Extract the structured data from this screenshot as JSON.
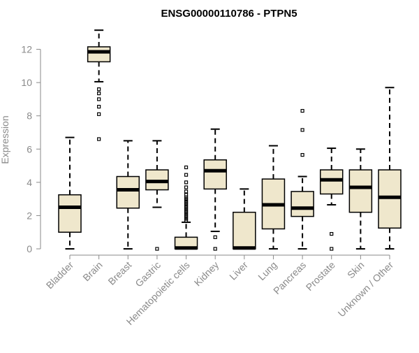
{
  "chart_data": {
    "type": "boxplot",
    "title": "ENSG00000110786 - PTPN5",
    "xlabel": "",
    "ylabel": "Expression",
    "ylim": [
      0,
      13.2
    ],
    "yticks": [
      0,
      2,
      4,
      6,
      8,
      10,
      12
    ],
    "grid": false,
    "colors": {
      "box_fill": "#efe7cc",
      "stroke": "#000000",
      "tick_text": "#8a8a8a",
      "axis": "#8a8a8a"
    },
    "categories": [
      "Bladder",
      "Brain",
      "Breast",
      "Gastric",
      "Hematopoietic cells",
      "Kidney",
      "Liver",
      "Lung",
      "Pancreas",
      "Prostate",
      "Skin",
      "Unknown / Other"
    ],
    "boxes": [
      {
        "category": "Bladder",
        "whisker_low": 0.0,
        "q1": 1.0,
        "median": 2.5,
        "q3": 3.25,
        "whisker_high": 6.7,
        "outliers": []
      },
      {
        "category": "Brain",
        "whisker_low": 10.05,
        "q1": 11.25,
        "median": 11.85,
        "q3": 12.15,
        "whisker_high": 13.15,
        "outliers": [
          9.6,
          9.35,
          9.0,
          8.55,
          8.1,
          6.6
        ]
      },
      {
        "category": "Breast",
        "whisker_low": 0.0,
        "q1": 2.45,
        "median": 3.55,
        "q3": 4.35,
        "whisker_high": 6.5,
        "outliers": []
      },
      {
        "category": "Gastric",
        "whisker_low": 2.5,
        "q1": 3.55,
        "median": 4.05,
        "q3": 4.75,
        "whisker_high": 6.5,
        "outliers": [
          0.0
        ]
      },
      {
        "category": "Hematopoietic cells",
        "whisker_low": 0.0,
        "q1": 0.0,
        "median": 0.05,
        "q3": 0.7,
        "whisker_high": 1.6,
        "outliers": [
          1.7,
          1.8,
          1.9,
          2.0,
          2.1,
          2.2,
          2.3,
          2.4,
          2.5,
          2.6,
          2.7,
          2.8,
          2.9,
          3.0,
          3.1,
          3.25,
          3.45,
          3.7,
          4.0,
          4.45,
          4.9
        ]
      },
      {
        "category": "Kidney",
        "whisker_low": 1.05,
        "q1": 3.6,
        "median": 4.7,
        "q3": 5.35,
        "whisker_high": 7.2,
        "outliers": [
          0.7,
          0.0
        ]
      },
      {
        "category": "Liver",
        "whisker_low": 0.0,
        "q1": 0.0,
        "median": 0.05,
        "q3": 2.2,
        "whisker_high": 3.6,
        "outliers": []
      },
      {
        "category": "Lung",
        "whisker_low": 0.0,
        "q1": 1.2,
        "median": 2.65,
        "q3": 4.2,
        "whisker_high": 6.2,
        "outliers": []
      },
      {
        "category": "Pancreas",
        "whisker_low": 0.0,
        "q1": 1.95,
        "median": 2.45,
        "q3": 3.45,
        "whisker_high": 4.35,
        "outliers": [
          5.65,
          7.15,
          8.3
        ]
      },
      {
        "category": "Prostate",
        "whisker_low": 2.65,
        "q1": 3.3,
        "median": 4.15,
        "q3": 4.75,
        "whisker_high": 6.05,
        "outliers": [
          0.9,
          0.0
        ]
      },
      {
        "category": "Skin",
        "whisker_low": 0.0,
        "q1": 2.2,
        "median": 3.7,
        "q3": 4.75,
        "whisker_high": 6.0,
        "outliers": []
      },
      {
        "category": "Unknown / Other",
        "whisker_low": 0.0,
        "q1": 1.25,
        "median": 3.1,
        "q3": 4.75,
        "whisker_high": 9.7,
        "outliers": []
      }
    ]
  }
}
